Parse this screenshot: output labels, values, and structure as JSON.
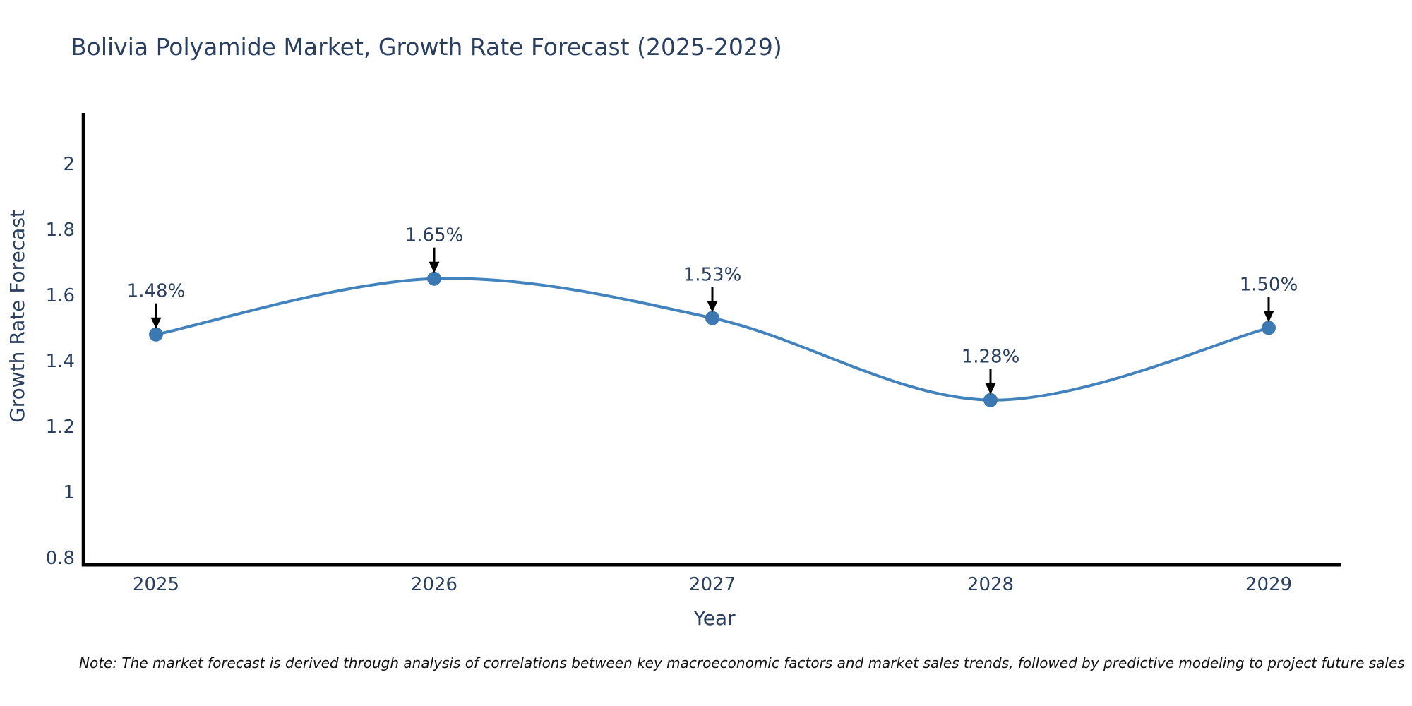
{
  "note": "Note: The market forecast is derived through analysis of correlations between key macroeconomic factors and market sales trends, followed by predictive modeling to project future sales",
  "chart_data": {
    "type": "line",
    "title": "Bolivia Polyamide Market, Growth Rate Forecast (2025-2029)",
    "xlabel": "Year",
    "ylabel": "Growth Rate Forecast",
    "x": [
      "2025",
      "2026",
      "2027",
      "2028",
      "2029"
    ],
    "values": [
      1.48,
      1.65,
      1.53,
      1.28,
      1.5
    ],
    "point_labels": [
      "1.48%",
      "1.65%",
      "1.53%",
      "1.28%",
      "1.50%"
    ],
    "yticks": [
      0.8,
      1,
      1.2,
      1.4,
      1.6,
      1.8,
      2
    ],
    "ytick_labels": [
      "0.8",
      "1",
      "1.2",
      "1.4",
      "1.6",
      "1.8",
      "2"
    ],
    "ylim": [
      0.778,
      2.155
    ],
    "line_shape": "spline",
    "grid": false,
    "legend": "none",
    "markers": true,
    "colors": {
      "line": "#4383bd",
      "marker": "#3c79b3",
      "axis_line": "#000000",
      "text": "#2a3f5f",
      "annotation_text": "#2a3f5f",
      "annotation_arrow": "#000000",
      "note_text": "#111111"
    }
  }
}
